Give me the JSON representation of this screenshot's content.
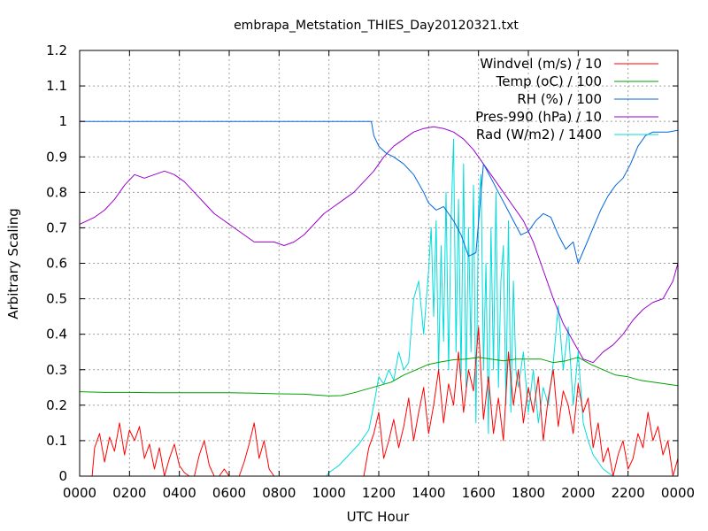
{
  "chart_data": {
    "type": "line",
    "title": "embrapa_Metstation_THIES_Day20120321.txt",
    "xlabel": "UTC Hour",
    "ylabel": "Arbitrary Scaling",
    "xlim": [
      0,
      24
    ],
    "ylim": [
      0,
      1.2
    ],
    "x_ticks": [
      0,
      2,
      4,
      6,
      8,
      10,
      12,
      14,
      16,
      18,
      20,
      22,
      24
    ],
    "x_tick_labels": [
      "0000",
      "0200",
      "0400",
      "0600",
      "0800",
      "1000",
      "1200",
      "1400",
      "1600",
      "1800",
      "2000",
      "2200",
      "0000"
    ],
    "y_ticks": [
      0,
      0.1,
      0.2,
      0.3,
      0.4,
      0.5,
      0.6,
      0.7,
      0.8,
      0.9,
      1,
      1.1,
      1.2
    ],
    "y_tick_labels": [
      "0",
      "0.1",
      "0.2",
      "0.3",
      "0.4",
      "0.5",
      "0.6",
      "0.7",
      "0.8",
      "0.9",
      "1",
      "1.1",
      "1.2"
    ],
    "grid": true,
    "legend_position": "top-right",
    "series": [
      {
        "name": "Windvel (m/s) / 10",
        "color": "#ff0000",
        "x": [
          0,
          0.5,
          0.6,
          0.8,
          1.0,
          1.2,
          1.4,
          1.6,
          1.8,
          2.0,
          2.2,
          2.4,
          2.6,
          2.8,
          3.0,
          3.2,
          3.4,
          3.6,
          3.8,
          4.0,
          4.2,
          4.4,
          4.6,
          4.8,
          5.0,
          5.2,
          5.4,
          5.6,
          5.8,
          6.0,
          6.2,
          6.4,
          6.6,
          6.8,
          7.0,
          7.2,
          7.4,
          7.6,
          7.8,
          8.0,
          8.2,
          8.4,
          8.6,
          8.8,
          9.0,
          9.2,
          9.4,
          9.6,
          9.8,
          10.0,
          10.2,
          10.4,
          10.6,
          10.8,
          11.0,
          11.2,
          11.4,
          11.6,
          11.8,
          12.0,
          12.2,
          12.4,
          12.6,
          12.8,
          13.0,
          13.2,
          13.4,
          13.6,
          13.8,
          14.0,
          14.2,
          14.4,
          14.6,
          14.8,
          15.0,
          15.2,
          15.4,
          15.6,
          15.8,
          16.0,
          16.2,
          16.4,
          16.6,
          16.8,
          17.0,
          17.2,
          17.4,
          17.6,
          17.8,
          18.0,
          18.2,
          18.4,
          18.6,
          18.8,
          19.0,
          19.2,
          19.4,
          19.6,
          19.8,
          20.0,
          20.2,
          20.4,
          20.6,
          20.8,
          21.0,
          21.2,
          21.4,
          21.6,
          21.8,
          22.0,
          22.2,
          22.4,
          22.6,
          22.8,
          23.0,
          23.2,
          23.4,
          23.6,
          23.8,
          24.0
        ],
        "y": [
          0,
          0,
          0.08,
          0.12,
          0.04,
          0.11,
          0.07,
          0.15,
          0.06,
          0.13,
          0.1,
          0.14,
          0.05,
          0.09,
          0.02,
          0.08,
          0,
          0.05,
          0.09,
          0.03,
          0.01,
          0,
          0,
          0.06,
          0.1,
          0.03,
          0,
          0,
          0.02,
          0,
          0,
          0,
          0.04,
          0.09,
          0.15,
          0.05,
          0.1,
          0.02,
          0,
          0,
          0,
          0,
          0,
          0,
          0,
          0,
          0,
          0,
          0,
          0,
          0,
          0,
          0,
          0,
          0,
          0,
          0,
          0.08,
          0.12,
          0.18,
          0.05,
          0.1,
          0.16,
          0.08,
          0.14,
          0.22,
          0.1,
          0.18,
          0.25,
          0.12,
          0.2,
          0.3,
          0.15,
          0.26,
          0.2,
          0.35,
          0.18,
          0.3,
          0.24,
          0.42,
          0.16,
          0.28,
          0.12,
          0.22,
          0.1,
          0.35,
          0.2,
          0.3,
          0.15,
          0.25,
          0.18,
          0.28,
          0.1,
          0.22,
          0.3,
          0.14,
          0.24,
          0.2,
          0.12,
          0.26,
          0.18,
          0.22,
          0.08,
          0.15,
          0.04,
          0.08,
          0,
          0.06,
          0.1,
          0.02,
          0.05,
          0.12,
          0.08,
          0.18,
          0.1,
          0.14,
          0.06,
          0.1,
          0,
          0.05
        ],
        "note_hidden": false
      },
      {
        "name": "Temp (oC) / 100",
        "color": "#00a000",
        "x": [
          0,
          1,
          2,
          3,
          4,
          5,
          6,
          7,
          8,
          9,
          10,
          10.5,
          11,
          11.5,
          12,
          12.5,
          13,
          13.5,
          14,
          14.5,
          15,
          15.5,
          16,
          16.5,
          17,
          17.5,
          18,
          18.5,
          19,
          19.5,
          20,
          20.5,
          21,
          21.5,
          22,
          22.5,
          23,
          23.5,
          24
        ],
        "y": [
          0.238,
          0.236,
          0.236,
          0.235,
          0.235,
          0.235,
          0.235,
          0.234,
          0.232,
          0.231,
          0.226,
          0.227,
          0.235,
          0.245,
          0.255,
          0.265,
          0.285,
          0.3,
          0.315,
          0.322,
          0.328,
          0.33,
          0.335,
          0.33,
          0.325,
          0.33,
          0.33,
          0.33,
          0.32,
          0.325,
          0.335,
          0.315,
          0.3,
          0.285,
          0.28,
          0.27,
          0.265,
          0.26,
          0.255
        ]
      },
      {
        "name": "RH (%) / 100",
        "color": "#0066dd",
        "x": [
          0,
          2,
          4,
          6,
          8,
          10,
          11.5,
          11.7,
          11.8,
          12.0,
          12.3,
          12.6,
          13.0,
          13.4,
          13.8,
          14.0,
          14.3,
          14.6,
          15.0,
          15.3,
          15.6,
          15.9,
          16.2,
          16.5,
          16.8,
          17.1,
          17.4,
          17.7,
          18.0,
          18.3,
          18.6,
          18.9,
          19.2,
          19.5,
          19.8,
          20.0,
          20.3,
          20.6,
          20.9,
          21.2,
          21.5,
          21.8,
          22.1,
          22.4,
          22.7,
          23.0,
          23.3,
          23.6,
          24.0
        ],
        "y": [
          1.0,
          1.0,
          1.0,
          1.0,
          1.0,
          1.0,
          1.0,
          1.0,
          0.96,
          0.93,
          0.91,
          0.9,
          0.88,
          0.85,
          0.8,
          0.77,
          0.75,
          0.76,
          0.72,
          0.68,
          0.62,
          0.63,
          0.88,
          0.84,
          0.8,
          0.76,
          0.72,
          0.68,
          0.69,
          0.72,
          0.74,
          0.73,
          0.68,
          0.64,
          0.66,
          0.6,
          0.65,
          0.7,
          0.75,
          0.79,
          0.82,
          0.84,
          0.88,
          0.93,
          0.96,
          0.97,
          0.97,
          0.97,
          0.975
        ]
      },
      {
        "name": "Pres-990 (hPa) / 10",
        "color": "#9900cc",
        "x": [
          0,
          0.3,
          0.6,
          1.0,
          1.4,
          1.8,
          2.2,
          2.6,
          3.0,
          3.4,
          3.8,
          4.2,
          4.6,
          5.0,
          5.4,
          5.8,
          6.2,
          6.6,
          7.0,
          7.4,
          7.8,
          8.2,
          8.6,
          9.0,
          9.4,
          9.8,
          10.2,
          10.6,
          11.0,
          11.4,
          11.8,
          12.2,
          12.6,
          13.0,
          13.4,
          13.8,
          14.2,
          14.6,
          15.0,
          15.4,
          15.8,
          16.2,
          16.6,
          17.0,
          17.4,
          17.8,
          18.2,
          18.6,
          19.0,
          19.4,
          19.8,
          20.2,
          20.6,
          21.0,
          21.4,
          21.8,
          22.2,
          22.6,
          23.0,
          23.4,
          23.8,
          24.0
        ],
        "y": [
          0.71,
          0.72,
          0.73,
          0.75,
          0.78,
          0.82,
          0.85,
          0.84,
          0.85,
          0.86,
          0.85,
          0.83,
          0.8,
          0.77,
          0.74,
          0.72,
          0.7,
          0.68,
          0.66,
          0.66,
          0.66,
          0.65,
          0.66,
          0.68,
          0.71,
          0.74,
          0.76,
          0.78,
          0.8,
          0.83,
          0.86,
          0.9,
          0.93,
          0.95,
          0.97,
          0.98,
          0.985,
          0.98,
          0.97,
          0.95,
          0.92,
          0.88,
          0.84,
          0.8,
          0.76,
          0.72,
          0.66,
          0.58,
          0.5,
          0.43,
          0.38,
          0.33,
          0.32,
          0.35,
          0.37,
          0.4,
          0.44,
          0.47,
          0.49,
          0.5,
          0.55,
          0.6
        ]
      },
      {
        "name": "Rad (W/m2) / 1400",
        "color": "#00dddd",
        "x": [
          0,
          9.9,
          10.0,
          10.4,
          10.8,
          11.2,
          11.6,
          11.8,
          12.0,
          12.2,
          12.4,
          12.6,
          12.8,
          13.0,
          13.2,
          13.4,
          13.6,
          13.8,
          14.0,
          14.1,
          14.2,
          14.3,
          14.4,
          14.5,
          14.6,
          14.7,
          14.8,
          14.9,
          15.0,
          15.1,
          15.2,
          15.3,
          15.4,
          15.5,
          15.6,
          15.7,
          15.8,
          15.9,
          16.0,
          16.1,
          16.2,
          16.3,
          16.4,
          16.5,
          16.6,
          16.7,
          16.8,
          16.9,
          17.0,
          17.1,
          17.2,
          17.3,
          17.4,
          17.5,
          17.6,
          17.8,
          18.0,
          18.2,
          18.4,
          18.6,
          18.8,
          19.0,
          19.2,
          19.4,
          19.6,
          19.8,
          20.0,
          20.2,
          20.4,
          20.6,
          20.8,
          21.0,
          21.2,
          21.4,
          21.6,
          21.8,
          22.0,
          22.4,
          24.0
        ],
        "y": [
          0,
          0,
          0.01,
          0.03,
          0.06,
          0.09,
          0.13,
          0.2,
          0.28,
          0.26,
          0.3,
          0.27,
          0.35,
          0.3,
          0.32,
          0.5,
          0.55,
          0.4,
          0.58,
          0.7,
          0.45,
          0.72,
          0.3,
          0.65,
          0.38,
          0.8,
          0.3,
          0.72,
          0.95,
          0.35,
          0.78,
          0.28,
          0.88,
          0.25,
          0.7,
          0.35,
          0.82,
          0.15,
          0.76,
          0.85,
          0.3,
          0.6,
          0.12,
          0.7,
          0.3,
          0.8,
          0.25,
          0.55,
          0.65,
          0.2,
          0.72,
          0.18,
          0.55,
          0.3,
          0.25,
          0.35,
          0.18,
          0.3,
          0.15,
          0.25,
          0.2,
          0.32,
          0.48,
          0.3,
          0.42,
          0.2,
          0.35,
          0.15,
          0.1,
          0.06,
          0.04,
          0.02,
          0.01,
          0,
          0,
          0,
          0,
          0,
          0
        ]
      }
    ]
  }
}
